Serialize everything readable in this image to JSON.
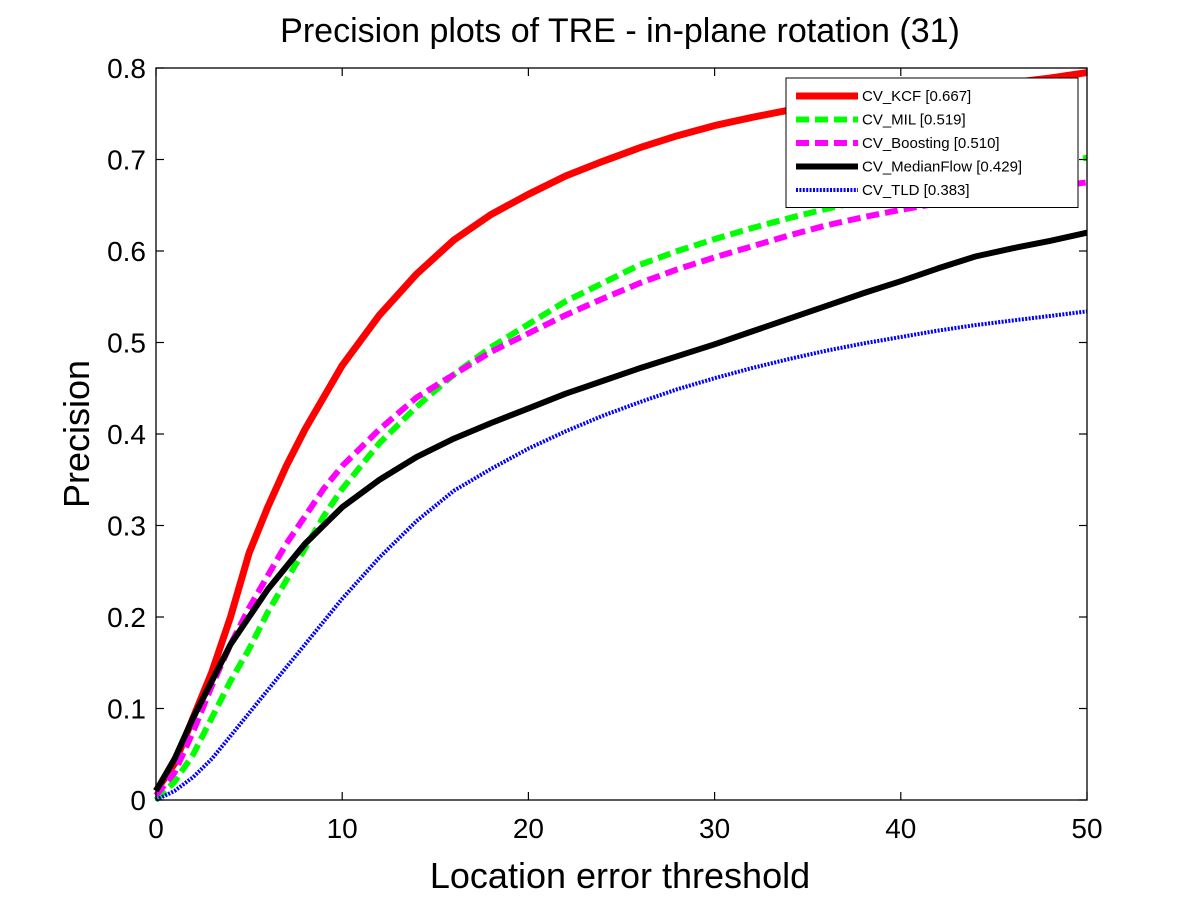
{
  "chart_data": {
    "type": "line",
    "title": "Precision plots of TRE - in-plane rotation (31)",
    "xlabel": "Location error threshold",
    "ylabel": "Precision",
    "xlim": [
      0,
      50
    ],
    "ylim": [
      0,
      0.8
    ],
    "xticks": [
      0,
      10,
      20,
      30,
      40,
      50
    ],
    "xtick_labels": [
      "0",
      "10",
      "20",
      "30",
      "40",
      "50"
    ],
    "yticks": [
      0,
      0.1,
      0.2,
      0.3,
      0.4,
      0.5,
      0.6,
      0.7,
      0.8
    ],
    "ytick_labels": [
      "0",
      "0.1",
      "0.2",
      "0.3",
      "0.4",
      "0.5",
      "0.6",
      "0.7",
      "0.8"
    ],
    "grid": false,
    "legend_position": "top-right",
    "x": [
      0,
      1,
      2,
      3,
      4,
      5,
      6,
      7,
      8,
      9,
      10,
      12,
      14,
      16,
      18,
      20,
      22,
      24,
      26,
      28,
      30,
      32,
      34,
      36,
      38,
      40,
      42,
      44,
      46,
      48,
      50
    ],
    "series": [
      {
        "name": "CV_KCF [0.667]",
        "color": "#ff0000",
        "style": "solid",
        "values": [
          0.01,
          0.04,
          0.09,
          0.14,
          0.2,
          0.27,
          0.32,
          0.365,
          0.405,
          0.44,
          0.475,
          0.53,
          0.575,
          0.612,
          0.64,
          0.662,
          0.682,
          0.698,
          0.713,
          0.726,
          0.737,
          0.746,
          0.754,
          0.76,
          0.765,
          0.77,
          0.775,
          0.779,
          0.784,
          0.789,
          0.795
        ]
      },
      {
        "name": "CV_MIL [0.519]",
        "color": "#00ff00",
        "style": "dashed",
        "values": [
          0.0,
          0.02,
          0.05,
          0.09,
          0.13,
          0.165,
          0.205,
          0.24,
          0.275,
          0.31,
          0.34,
          0.39,
          0.43,
          0.465,
          0.495,
          0.52,
          0.545,
          0.565,
          0.585,
          0.6,
          0.613,
          0.625,
          0.636,
          0.646,
          0.655,
          0.663,
          0.671,
          0.679,
          0.686,
          0.694,
          0.702
        ]
      },
      {
        "name": "CV_Boosting [0.510]",
        "color": "#ff00ff",
        "style": "dashed",
        "values": [
          0.005,
          0.03,
          0.075,
          0.125,
          0.17,
          0.21,
          0.245,
          0.28,
          0.31,
          0.34,
          0.365,
          0.405,
          0.44,
          0.465,
          0.49,
          0.51,
          0.53,
          0.548,
          0.565,
          0.58,
          0.593,
          0.605,
          0.617,
          0.628,
          0.637,
          0.645,
          0.652,
          0.658,
          0.664,
          0.67,
          0.675
        ]
      },
      {
        "name": "CV_MedianFlow [0.429]",
        "color": "#000000",
        "style": "solid",
        "values": [
          0.01,
          0.045,
          0.09,
          0.13,
          0.17,
          0.2,
          0.23,
          0.255,
          0.28,
          0.3,
          0.32,
          0.35,
          0.375,
          0.395,
          0.412,
          0.428,
          0.444,
          0.458,
          0.472,
          0.485,
          0.498,
          0.512,
          0.526,
          0.54,
          0.554,
          0.567,
          0.581,
          0.594,
          0.603,
          0.611,
          0.62
        ]
      },
      {
        "name": "CV_TLD [0.383]",
        "color": "#0000ff",
        "style": "dotted",
        "values": [
          0.0,
          0.01,
          0.025,
          0.045,
          0.07,
          0.095,
          0.12,
          0.145,
          0.17,
          0.195,
          0.22,
          0.265,
          0.305,
          0.338,
          0.362,
          0.384,
          0.403,
          0.42,
          0.435,
          0.449,
          0.461,
          0.472,
          0.482,
          0.491,
          0.499,
          0.506,
          0.513,
          0.519,
          0.524,
          0.529,
          0.534
        ]
      }
    ]
  }
}
